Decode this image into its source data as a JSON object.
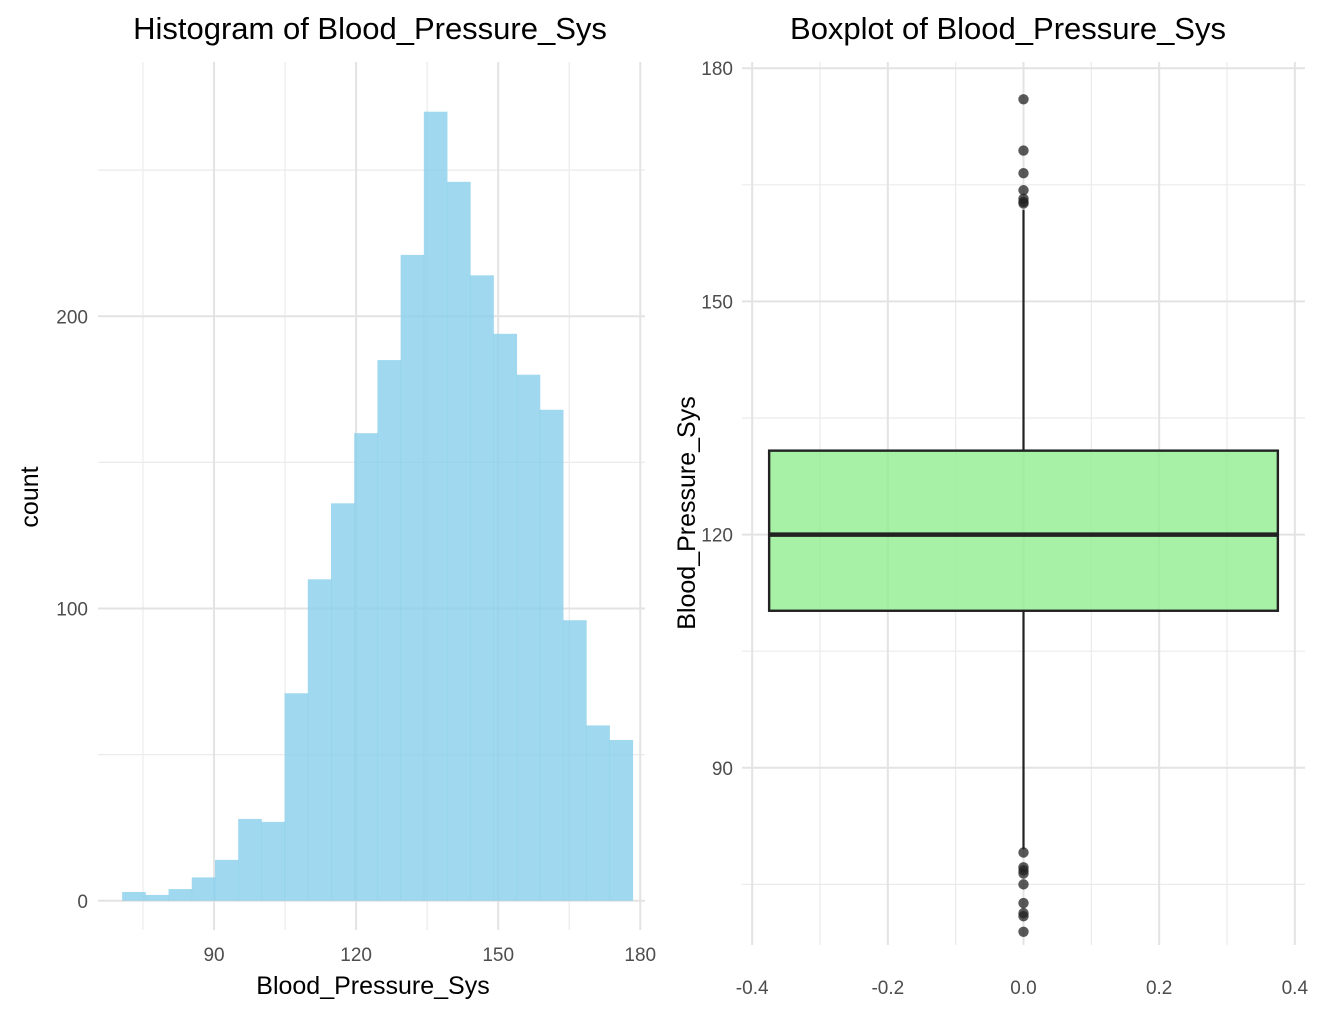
{
  "chart_data": [
    {
      "type": "bar",
      "subtype": "histogram",
      "title": "Histogram of Blood_Pressure_Sys",
      "xlabel": "Blood_Pressure_Sys",
      "ylabel": "count",
      "xlim": [
        65.5,
        181
      ],
      "ylim": [
        -10,
        287
      ],
      "x_ticks": [
        90,
        120,
        150,
        180
      ],
      "y_ticks": [
        0,
        100,
        200
      ],
      "bin_width": 4.9,
      "bins": [
        {
          "x0": 70.6,
          "x1": 75.5,
          "count": 3
        },
        {
          "x0": 75.5,
          "x1": 80.4,
          "count": 2
        },
        {
          "x0": 80.4,
          "x1": 85.3,
          "count": 4
        },
        {
          "x0": 85.3,
          "x1": 90.2,
          "count": 8
        },
        {
          "x0": 90.2,
          "x1": 95.1,
          "count": 14
        },
        {
          "x0": 95.1,
          "x1": 100.0,
          "count": 28
        },
        {
          "x0": 100.0,
          "x1": 104.9,
          "count": 27
        },
        {
          "x0": 104.9,
          "x1": 109.8,
          "count": 71
        },
        {
          "x0": 109.8,
          "x1": 114.7,
          "count": 110
        },
        {
          "x0": 114.7,
          "x1": 119.6,
          "count": 136
        },
        {
          "x0": 119.6,
          "x1": 124.5,
          "count": 160
        },
        {
          "x0": 124.5,
          "x1": 129.4,
          "count": 185
        },
        {
          "x0": 129.4,
          "x1": 134.3,
          "count": 221
        },
        {
          "x0": 134.3,
          "x1": 139.2,
          "count": 270
        },
        {
          "x0": 139.2,
          "x1": 144.1,
          "count": 246
        },
        {
          "x0": 144.1,
          "x1": 149.0,
          "count": 214
        },
        {
          "x0": 149.0,
          "x1": 153.9,
          "count": 194
        },
        {
          "x0": 153.9,
          "x1": 158.8,
          "count": 180
        },
        {
          "x0": 158.8,
          "x1": 163.7,
          "count": 168
        },
        {
          "x0": 163.7,
          "x1": 168.6,
          "count": 96
        },
        {
          "x0": 168.6,
          "x1": 173.5,
          "count": 60
        },
        {
          "x0": 173.5,
          "x1": 178.4,
          "count": 55
        }
      ],
      "fill_color": "#87CEEB"
    },
    {
      "type": "box",
      "title": "Boxplot of Blood_Pressure_Sys",
      "xlabel": "",
      "ylabel": "Blood_Pressure_Sys",
      "xlim": [
        -0.415,
        0.415
      ],
      "ylim": [
        67.2,
        180.8
      ],
      "x_ticks": [
        "-0.4",
        "-0.2",
        "0.0",
        "0.2",
        "0.4"
      ],
      "y_ticks": [
        90,
        120,
        150,
        180
      ],
      "box": {
        "x_center": 0.0,
        "half_width": 0.375,
        "q1": 110.2,
        "median": 120.0,
        "q3": 130.8,
        "whisker_low": 79.5,
        "whisker_high": 161.8
      },
      "outliers": [
        176,
        169.4,
        166.5,
        164.3,
        163.2,
        162.8,
        162.6,
        79.1,
        77.2,
        76.8,
        76.4,
        75.0,
        72.6,
        71.3,
        70.9,
        68.9
      ],
      "fill_color": "#90EE90",
      "line_color": "#222222"
    }
  ]
}
